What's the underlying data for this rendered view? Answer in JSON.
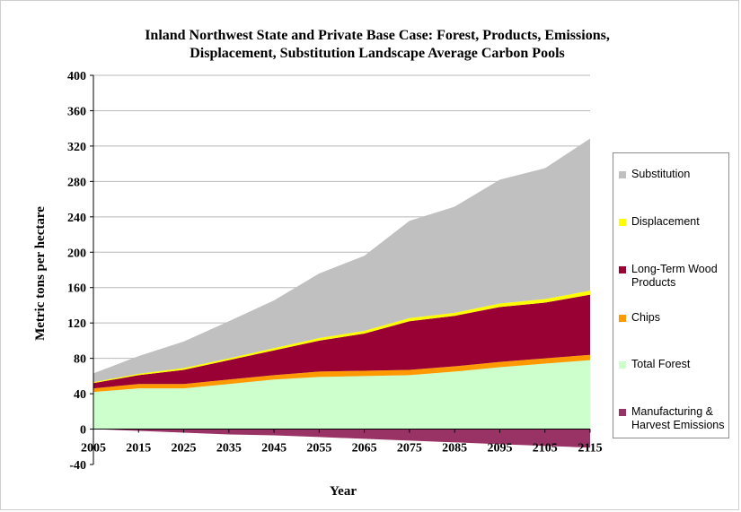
{
  "chart_data": {
    "type": "area",
    "title_lines": [
      "Inland Northwest State and Private Base Case:  Forest, Products, Emissions,",
      "Displacement, Substitution Landscape Average Carbon Pools"
    ],
    "xlabel": "Year",
    "ylabel": "Metric tons per hectare",
    "xlim": [
      2005,
      2115
    ],
    "ylim": [
      -40,
      400
    ],
    "x_ticks": [
      "2005",
      "2015",
      "2025",
      "2035",
      "2045",
      "2055",
      "2065",
      "2075",
      "2085",
      "2095",
      "2105",
      "2115"
    ],
    "y_ticks": [
      "400",
      "360",
      "320",
      "280",
      "240",
      "200",
      "160",
      "120",
      "80",
      "40",
      "0",
      "-40"
    ],
    "grid": true,
    "legend_position": "right",
    "x": [
      2005,
      2015,
      2025,
      2035,
      2045,
      2055,
      2065,
      2075,
      2085,
      2095,
      2105,
      2115
    ],
    "series": [
      {
        "name": "Substitution",
        "color": "#c0c0c0",
        "values": [
          10,
          20,
          30,
          42,
          54,
          73,
          85,
          110,
          120,
          140,
          148,
          172
        ]
      },
      {
        "name": "Displacement",
        "color": "#ffff00",
        "values": [
          1,
          1.5,
          2,
          2,
          2.5,
          3,
          3,
          3.5,
          3.5,
          4,
          4,
          4.5
        ]
      },
      {
        "name": "Long-Term Wood Products",
        "color": "#990033",
        "values": [
          6,
          10,
          16,
          22,
          28,
          35,
          42,
          55,
          57,
          62,
          63,
          68
        ]
      },
      {
        "name": "Chips",
        "color": "#ff9900",
        "values": [
          4,
          5,
          5,
          5,
          5,
          6,
          6,
          6,
          6,
          6,
          6,
          6
        ]
      },
      {
        "name": "Total Forest",
        "color": "#ccffcc",
        "values": [
          42,
          46,
          46,
          51,
          56,
          59,
          60,
          61,
          65,
          70,
          74,
          78
        ]
      },
      {
        "name": "Manufacturing & Harvest Emissions",
        "color": "#993366",
        "values": [
          0,
          -2,
          -4,
          -6,
          -7,
          -9,
          -11,
          -13,
          -15,
          -17,
          -19,
          -21
        ]
      }
    ]
  }
}
